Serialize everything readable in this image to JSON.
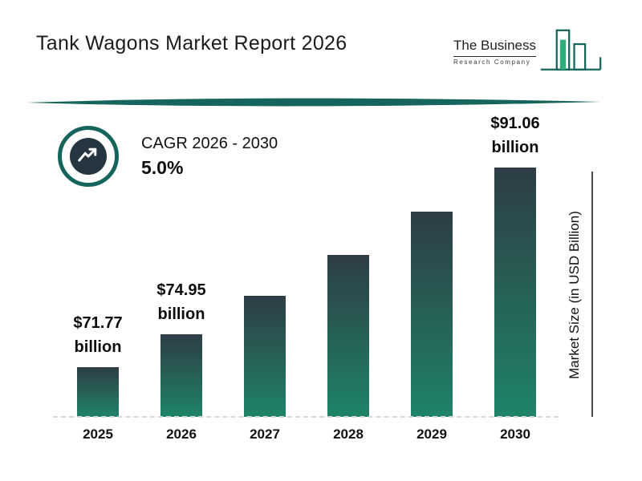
{
  "header": {
    "title": "Tank Wagons Market Report 2026",
    "logo": {
      "line1": "The Business",
      "line2": "Research Company"
    }
  },
  "cagr": {
    "label": "CAGR 2026 - 2030",
    "value": "5.0%",
    "icon": "trend-up-arrow-icon"
  },
  "chart_data": {
    "type": "bar",
    "title": "",
    "categories": [
      "2025",
      "2026",
      "2027",
      "2028",
      "2029",
      "2030"
    ],
    "values": [
      71.77,
      74.95,
      78.7,
      82.63,
      86.76,
      91.06
    ],
    "value_labels": [
      {
        "line1": "$71.77",
        "line2": "billion"
      },
      {
        "line1": "$74.95",
        "line2": "billion"
      },
      null,
      null,
      null,
      {
        "line1": "$91.06",
        "line2": "billion"
      }
    ],
    "xlabel": "",
    "ylabel": "Market Size (in USD Billion)",
    "ylim": [
      67,
      92.5
    ],
    "grid": false,
    "legend": false,
    "baseline_style": "dashed",
    "colors": {
      "bar_gradient_top": "#2e3c45",
      "bar_gradient_bottom": "#1e8468",
      "accent_teal": "#16655c",
      "logo_green": "#2fae7d",
      "text": "#111111"
    }
  }
}
